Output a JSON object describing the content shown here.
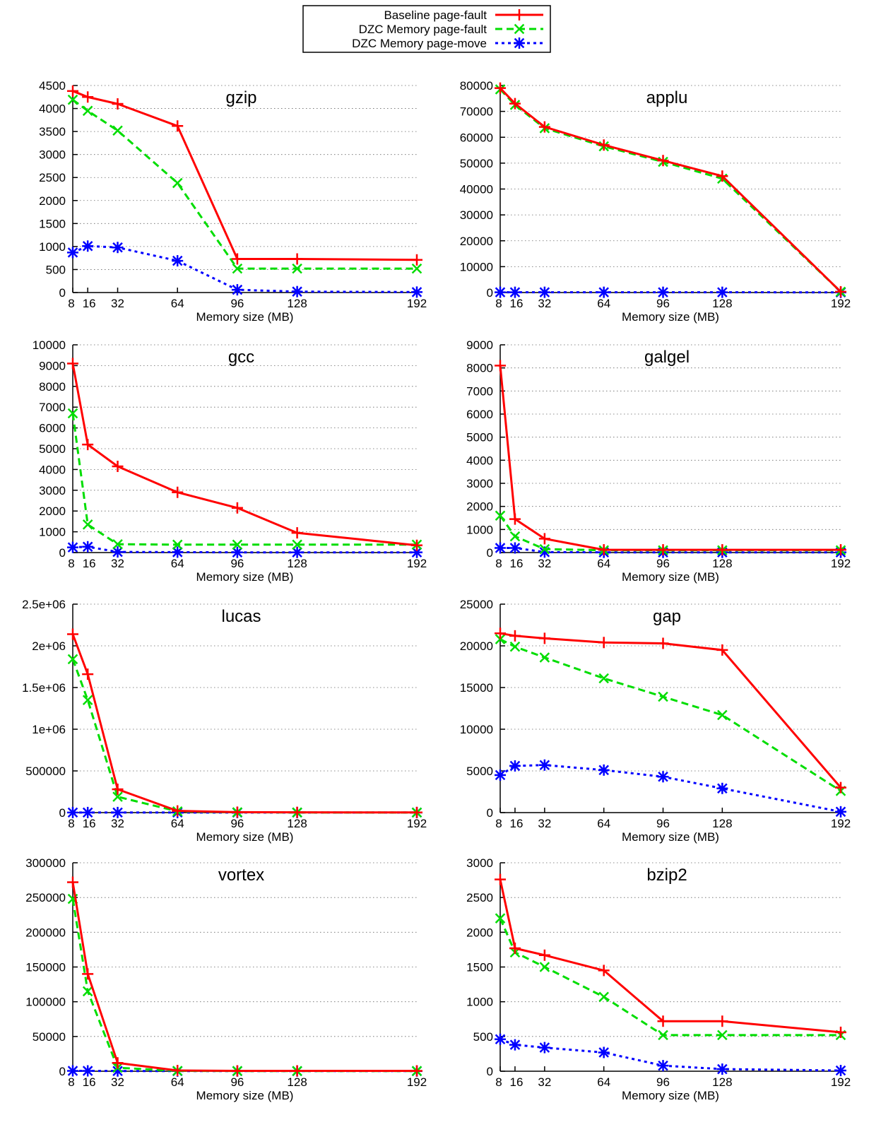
{
  "legend": {
    "entries": [
      {
        "label": "Baseline page-fault",
        "color": "#ff0000",
        "dash": "solid",
        "marker": "plus"
      },
      {
        "label": "DZC Memory page-fault",
        "color": "#00dd00",
        "dash": "dashed",
        "marker": "cross"
      },
      {
        "label": "DZC Memory page-move",
        "color": "#0000ff",
        "dash": "dotted",
        "marker": "star"
      }
    ]
  },
  "chart_data": [
    {
      "type": "line",
      "title": "gzip",
      "xlabel": "Memory size (MB)",
      "ylabel": "",
      "x": [
        8,
        16,
        32,
        64,
        96,
        128,
        192
      ],
      "ylim": [
        0,
        4500
      ],
      "yticks": [
        0,
        500,
        1000,
        1500,
        2000,
        2500,
        3000,
        3500,
        4000,
        4500
      ],
      "ytick_labels": [
        "0",
        "500",
        "1000",
        "1500",
        "2000",
        "2500",
        "3000",
        "3500",
        "4000",
        "4500"
      ],
      "series": [
        {
          "name": "Baseline page-fault",
          "values": [
            4380,
            4250,
            4100,
            3620,
            730,
            730,
            710
          ]
        },
        {
          "name": "DZC Memory page-fault",
          "values": [
            4190,
            3950,
            3520,
            2380,
            520,
            520,
            520
          ]
        },
        {
          "name": "DZC Memory page-move",
          "values": [
            870,
            1010,
            980,
            690,
            60,
            20,
            10
          ]
        }
      ]
    },
    {
      "type": "line",
      "title": "applu",
      "xlabel": "Memory size (MB)",
      "ylabel": "",
      "x": [
        8,
        16,
        32,
        64,
        96,
        128,
        192
      ],
      "ylim": [
        0,
        80000
      ],
      "yticks": [
        0,
        10000,
        20000,
        30000,
        40000,
        50000,
        60000,
        70000,
        80000
      ],
      "ytick_labels": [
        "0",
        "10000",
        "20000",
        "30000",
        "40000",
        "50000",
        "60000",
        "70000",
        "80000"
      ],
      "series": [
        {
          "name": "Baseline page-fault",
          "values": [
            79000,
            73000,
            64000,
            57000,
            51000,
            45000,
            300
          ]
        },
        {
          "name": "DZC Memory page-fault",
          "values": [
            78500,
            72500,
            63500,
            56500,
            50500,
            44000,
            300
          ]
        },
        {
          "name": "DZC Memory page-move",
          "values": [
            100,
            100,
            100,
            100,
            100,
            100,
            50
          ]
        }
      ]
    },
    {
      "type": "line",
      "title": "gcc",
      "xlabel": "Memory size (MB)",
      "ylabel": "",
      "x": [
        8,
        16,
        32,
        64,
        96,
        128,
        192
      ],
      "ylim": [
        0,
        10000
      ],
      "yticks": [
        0,
        1000,
        2000,
        3000,
        4000,
        5000,
        6000,
        7000,
        8000,
        9000,
        10000
      ],
      "ytick_labels": [
        "0",
        "1000",
        "2000",
        "3000",
        "4000",
        "5000",
        "6000",
        "7000",
        "8000",
        "9000",
        "10000"
      ],
      "series": [
        {
          "name": "Baseline page-fault",
          "values": [
            9100,
            5200,
            4150,
            2900,
            2150,
            950,
            350
          ]
        },
        {
          "name": "DZC Memory page-fault",
          "values": [
            6700,
            1350,
            400,
            380,
            380,
            380,
            380
          ]
        },
        {
          "name": "DZC Memory page-move",
          "values": [
            250,
            280,
            30,
            20,
            10,
            10,
            10
          ]
        }
      ]
    },
    {
      "type": "line",
      "title": "galgel",
      "xlabel": "Memory size (MB)",
      "ylabel": "",
      "x": [
        8,
        16,
        32,
        64,
        96,
        128,
        192
      ],
      "ylim": [
        0,
        9000
      ],
      "yticks": [
        0,
        1000,
        2000,
        3000,
        4000,
        5000,
        6000,
        7000,
        8000,
        9000
      ],
      "ytick_labels": [
        "0",
        "1000",
        "2000",
        "3000",
        "4000",
        "5000",
        "6000",
        "7000",
        "8000",
        "9000"
      ],
      "series": [
        {
          "name": "Baseline page-fault",
          "values": [
            8100,
            1450,
            600,
            120,
            120,
            120,
            120
          ]
        },
        {
          "name": "DZC Memory page-fault",
          "values": [
            1600,
            700,
            150,
            100,
            100,
            100,
            100
          ]
        },
        {
          "name": "DZC Memory page-move",
          "values": [
            200,
            200,
            20,
            10,
            10,
            10,
            10
          ]
        }
      ]
    },
    {
      "type": "line",
      "title": "lucas",
      "xlabel": "Memory size (MB)",
      "ylabel": "",
      "x": [
        8,
        16,
        32,
        64,
        96,
        128,
        192
      ],
      "ylim": [
        0,
        2500000
      ],
      "yticks": [
        0,
        500000,
        1000000,
        1500000,
        2000000,
        2500000
      ],
      "ytick_labels": [
        "0",
        "500000",
        "1e+06",
        "1.5e+06",
        "2e+06",
        "2.5e+06"
      ],
      "series": [
        {
          "name": "Baseline page-fault",
          "values": [
            2140000,
            1660000,
            280000,
            20000,
            5000,
            3000,
            2000
          ]
        },
        {
          "name": "DZC Memory page-fault",
          "values": [
            1840000,
            1350000,
            190000,
            15000,
            4000,
            2000,
            1000
          ]
        },
        {
          "name": "DZC Memory page-move",
          "values": [
            1000,
            1000,
            1000,
            1000,
            500,
            500,
            500
          ]
        }
      ]
    },
    {
      "type": "line",
      "title": "gap",
      "xlabel": "Memory size (MB)",
      "ylabel": "",
      "x": [
        8,
        16,
        32,
        64,
        96,
        128,
        192
      ],
      "ylim": [
        0,
        25000
      ],
      "yticks": [
        0,
        5000,
        10000,
        15000,
        20000,
        25000
      ],
      "ytick_labels": [
        "0",
        "5000",
        "10000",
        "15000",
        "20000",
        "25000"
      ],
      "series": [
        {
          "name": "Baseline page-fault",
          "values": [
            21500,
            21200,
            20900,
            20400,
            20300,
            19500,
            3000
          ]
        },
        {
          "name": "DZC Memory page-fault",
          "values": [
            20800,
            19900,
            18600,
            16100,
            13900,
            11700,
            2600
          ]
        },
        {
          "name": "DZC Memory page-move",
          "values": [
            4500,
            5600,
            5700,
            5100,
            4300,
            2900,
            100
          ]
        }
      ]
    },
    {
      "type": "line",
      "title": "vortex",
      "xlabel": "Memory size (MB)",
      "ylabel": "",
      "x": [
        8,
        16,
        32,
        64,
        96,
        128,
        192
      ],
      "ylim": [
        0,
        300000
      ],
      "yticks": [
        0,
        50000,
        100000,
        150000,
        200000,
        250000,
        300000
      ],
      "ytick_labels": [
        "0",
        "50000",
        "100000",
        "150000",
        "200000",
        "250000",
        "300000"
      ],
      "series": [
        {
          "name": "Baseline page-fault",
          "values": [
            272000,
            140000,
            12000,
            1000,
            500,
            500,
            500
          ]
        },
        {
          "name": "DZC Memory page-fault",
          "values": [
            248000,
            115000,
            5000,
            500,
            300,
            300,
            300
          ]
        },
        {
          "name": "DZC Memory page-move",
          "values": [
            500,
            500,
            300,
            200,
            200,
            200,
            200
          ]
        }
      ]
    },
    {
      "type": "line",
      "title": "bzip2",
      "xlabel": "Memory size (MB)",
      "ylabel": "",
      "x": [
        8,
        16,
        32,
        64,
        96,
        128,
        192
      ],
      "ylim": [
        0,
        3000
      ],
      "yticks": [
        0,
        500,
        1000,
        1500,
        2000,
        2500,
        3000
      ],
      "ytick_labels": [
        "0",
        "500",
        "1000",
        "1500",
        "2000",
        "2500",
        "3000"
      ],
      "series": [
        {
          "name": "Baseline page-fault",
          "values": [
            2760,
            1770,
            1670,
            1450,
            720,
            720,
            560
          ]
        },
        {
          "name": "DZC Memory page-fault",
          "values": [
            2200,
            1710,
            1500,
            1070,
            520,
            520,
            520
          ]
        },
        {
          "name": "DZC Memory page-move",
          "values": [
            460,
            380,
            340,
            270,
            80,
            30,
            10
          ]
        }
      ]
    }
  ]
}
